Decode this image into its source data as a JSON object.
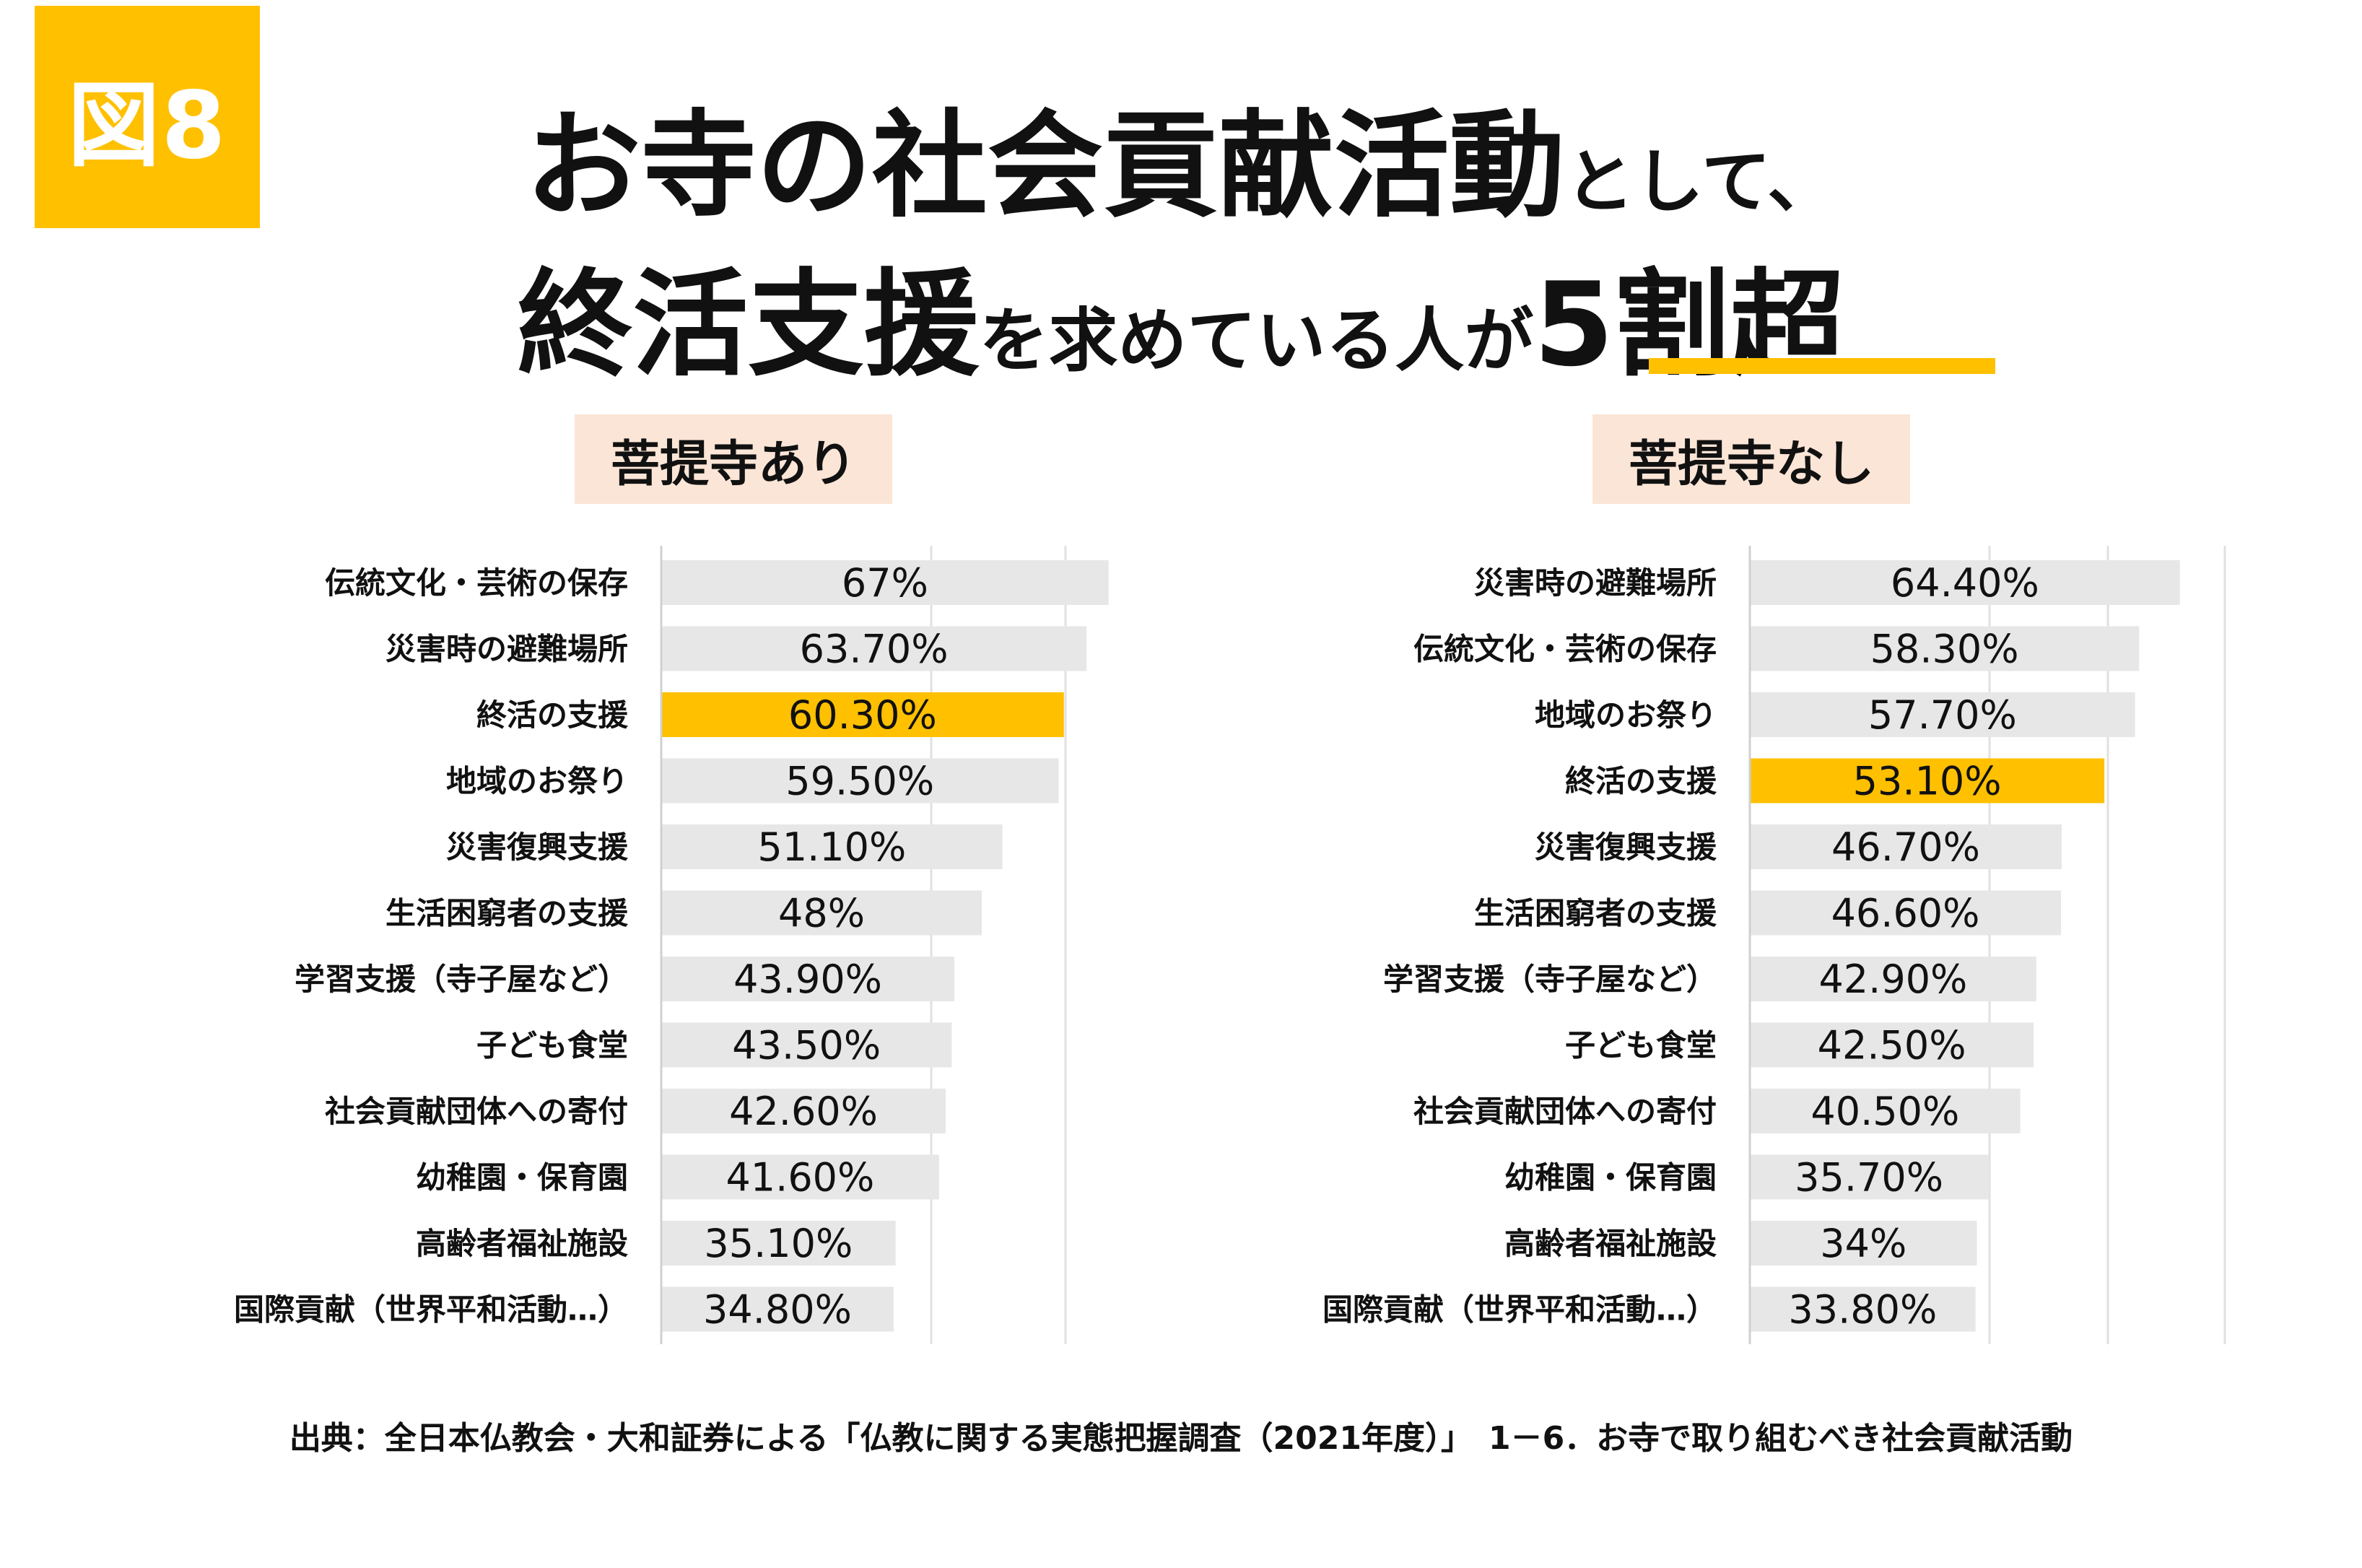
{
  "badge": "図8",
  "headline": {
    "l1_big": "お寺の社会貢献活動",
    "l1_small": "として、",
    "l2_big1": "終活支援",
    "l2_small": "を求めている人が",
    "l2_big2": "5割超"
  },
  "colors": {
    "accent": "#FFC000",
    "bar": "#E7E7E7",
    "title_bg": "#FBE5D6",
    "grid": "#E0E0E0"
  },
  "highlight_category": "終活の支援",
  "chart_data": [
    {
      "type": "bar",
      "orientation": "horizontal",
      "title": "菩提寺あり",
      "categories": [
        "伝統文化・芸術の保存",
        "災害時の避難場所",
        "終活の支援",
        "地域のお祭り",
        "災害復興支援",
        "生活困窮者の支援",
        "学習支援（寺子屋など）",
        "子ども食堂",
        "社会貢献団体への寄付",
        "幼稚園・保育園",
        "高齢者福祉施設",
        "国際貢献（世界平和活動…）"
      ],
      "values": [
        67,
        63.7,
        60.3,
        59.5,
        51.1,
        48,
        43.9,
        43.5,
        42.6,
        41.6,
        35.1,
        34.8
      ],
      "labels": [
        "67%",
        "63.70%",
        "60.30%",
        "59.50%",
        "51.10%",
        "48%",
        "43.90%",
        "43.50%",
        "42.60%",
        "41.60%",
        "35.10%",
        "34.80%"
      ],
      "xlim": [
        0,
        80
      ],
      "grid": true
    },
    {
      "type": "bar",
      "orientation": "horizontal",
      "title": "菩提寺なし",
      "categories": [
        "災害時の避難場所",
        "伝統文化・芸術の保存",
        "地域のお祭り",
        "終活の支援",
        "災害復興支援",
        "生活困窮者の支援",
        "学習支援（寺子屋など）",
        "子ども食堂",
        "社会貢献団体への寄付",
        "幼稚園・保育園",
        "高齢者福祉施設",
        "国際貢献（世界平和活動…）"
      ],
      "values": [
        64.4,
        58.3,
        57.7,
        53.1,
        46.7,
        46.6,
        42.9,
        42.5,
        40.5,
        35.7,
        34,
        33.8
      ],
      "labels": [
        "64.40%",
        "58.30%",
        "57.70%",
        "53.10%",
        "46.70%",
        "46.60%",
        "42.90%",
        "42.50%",
        "40.50%",
        "35.70%",
        "34%",
        "33.80%"
      ],
      "xlim": [
        0,
        80
      ],
      "grid": true
    }
  ],
  "source": "出典：全日本仏教会・大和証券による「仏教に関する実態把握調査（2021年度）」　1－6．お寺で取り組むべき社会貢献活動"
}
